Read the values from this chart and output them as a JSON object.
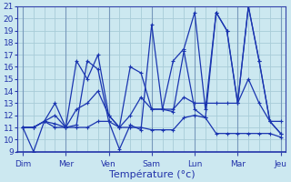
{
  "title": "Température (°c)",
  "bg_color": "#cce8f0",
  "grid_color": "#a8ccd8",
  "line_color": "#1a35b0",
  "xlabels": [
    "Dim",
    "Mer",
    "Ven",
    "Sam",
    "Lun",
    "Mar",
    "Jeu"
  ],
  "x_tick_positions": [
    0,
    4,
    8,
    12,
    16,
    20,
    24
  ],
  "ylim": [
    9,
    21
  ],
  "yticks": [
    9,
    10,
    11,
    12,
    13,
    14,
    15,
    16,
    17,
    18,
    19,
    20,
    21
  ],
  "series": [
    [
      11.0,
      9.0,
      11.5,
      11.0,
      11.0,
      11.2,
      16.5,
      15.8,
      11.5,
      9.2,
      11.2,
      10.8,
      19.5,
      12.5,
      12.3,
      17.3,
      12.5,
      11.8,
      20.5,
      19.0,
      13.0,
      21.0,
      16.5,
      11.5,
      10.5
    ],
    [
      11.0,
      11.0,
      11.5,
      11.3,
      11.0,
      11.0,
      11.0,
      11.5,
      11.5,
      11.0,
      11.0,
      11.0,
      10.8,
      10.8,
      10.8,
      11.8,
      12.0,
      11.8,
      10.5,
      10.5,
      10.5,
      10.5,
      10.5,
      10.5,
      10.2
    ],
    [
      11.0,
      11.0,
      11.5,
      12.0,
      11.0,
      12.5,
      13.0,
      14.0,
      12.0,
      11.0,
      12.0,
      13.5,
      12.5,
      12.5,
      12.5,
      13.5,
      13.0,
      13.0,
      13.0,
      13.0,
      13.0,
      15.0,
      13.0,
      11.5,
      11.5
    ],
    [
      11.0,
      11.0,
      11.5,
      13.0,
      11.0,
      16.5,
      15.0,
      17.0,
      12.0,
      11.0,
      16.0,
      15.5,
      12.5,
      12.5,
      16.5,
      17.5,
      20.5,
      12.5,
      20.5,
      19.0,
      13.0,
      21.0,
      16.5,
      11.5,
      10.5
    ]
  ],
  "n_points": 25,
  "x_per_segment": 4
}
